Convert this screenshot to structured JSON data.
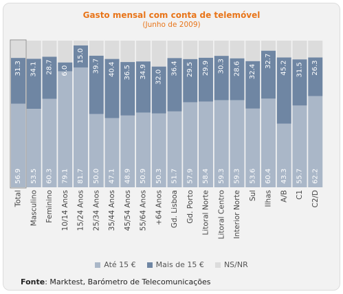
{
  "title": "Gasto mensal com conta de telemóvel",
  "subtitle": "(Junho de 2009)",
  "source_label": "Fonte",
  "source_text": ": Marktest, Barómetro de Telecomunicações",
  "colors": {
    "ate15": "#aab7c8",
    "mais15": "#6f86a3",
    "nsnr": "#dcdcdc",
    "title": "#e8751a"
  },
  "legend": [
    {
      "name": "Até 15 €",
      "color": "#aab7c8"
    },
    {
      "name": "Mais de 15 €",
      "color": "#6f86a3"
    },
    {
      "name": "NS/NR",
      "color": "#dcdcdc"
    }
  ],
  "chart_data": {
    "type": "bar",
    "stacked": true,
    "orientation": "vertical",
    "ylim": [
      0,
      100
    ],
    "categories": [
      "Total",
      "Masculino",
      "Feminino",
      "10/14 Anos",
      "15/24 Anos",
      "25/34 Anos",
      "35/44 Anos",
      "45/54 Anos",
      "55/64 Anos",
      "+64 Anos",
      "Gd. Lisboa",
      "Gd. Porto",
      "Litoral Norte",
      "Litoral Centro",
      "Interior Norte",
      "Sul",
      "Ilhas",
      "A/B",
      "C1",
      "C2/D"
    ],
    "series": [
      {
        "name": "Até 15 €",
        "values": [
          56.9,
          53.5,
          60.3,
          79.1,
          81.7,
          50.0,
          47.1,
          48.9,
          50.9,
          50.3,
          51.7,
          57.9,
          58.4,
          59.3,
          59.3,
          53.6,
          60.4,
          43.3,
          55.7,
          62.2
        ]
      },
      {
        "name": "Mais de 15 €",
        "values": [
          31.3,
          34.1,
          28.7,
          6.0,
          15.0,
          39.7,
          40.4,
          36.5,
          34.9,
          32.0,
          36.4,
          29.5,
          29.9,
          30.3,
          28.6,
          32.4,
          32.7,
          45.2,
          31.5,
          26.3
        ]
      },
      {
        "name": "NS/NR",
        "values": [
          11.8,
          12.4,
          11.0,
          14.9,
          3.3,
          10.3,
          12.5,
          14.6,
          14.2,
          17.7,
          11.9,
          12.6,
          11.7,
          10.4,
          12.1,
          14.0,
          6.9,
          11.5,
          12.8,
          11.5
        ]
      }
    ],
    "grid": false,
    "legend_position": "bottom"
  }
}
